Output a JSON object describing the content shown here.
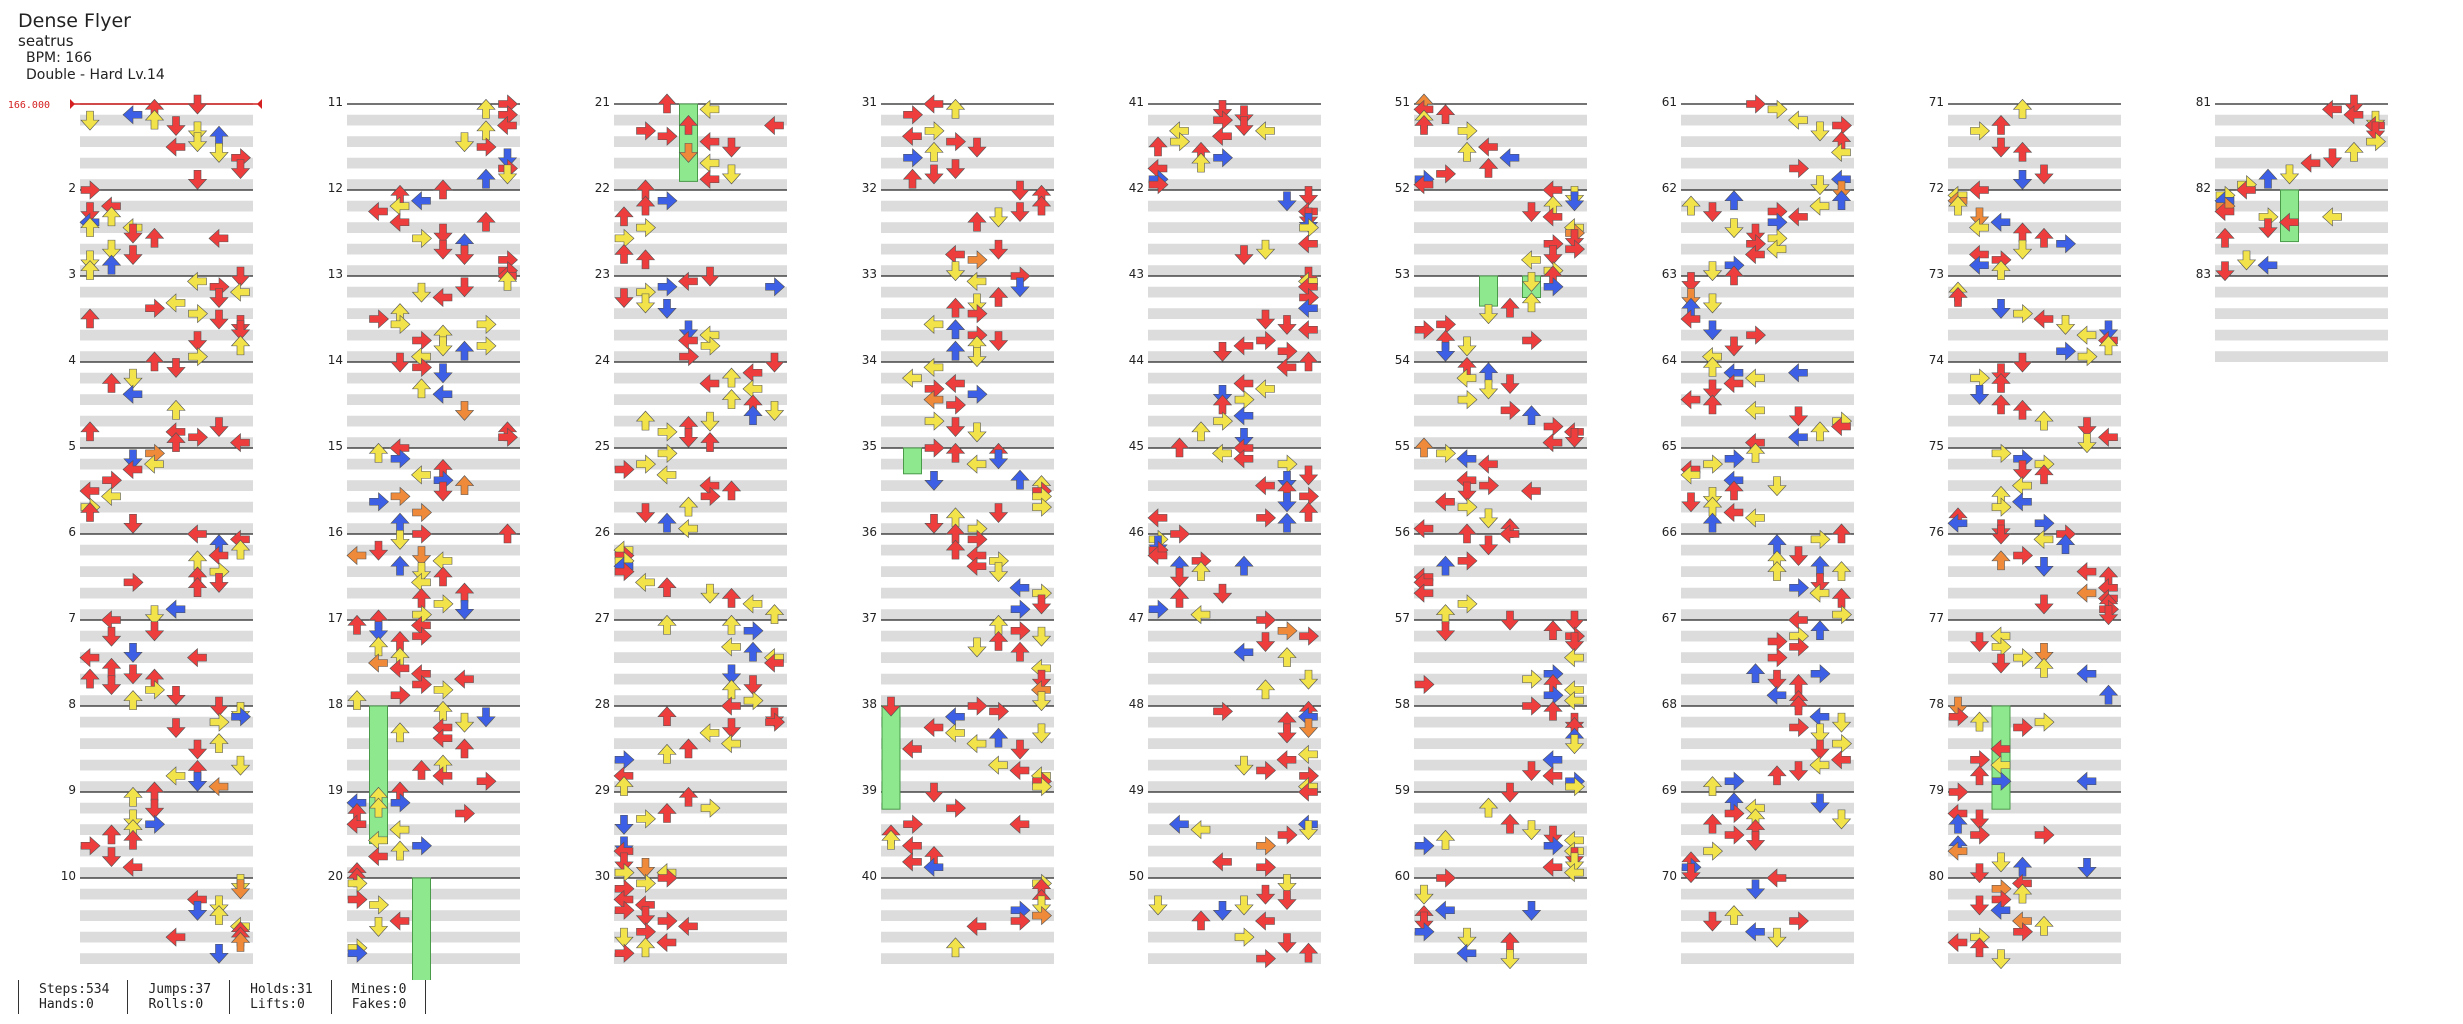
{
  "song": {
    "title": "Dense Flyer",
    "artist": "seatrus",
    "bpm_label": "BPM: 166",
    "difficulty": "Double - Hard Lv.14"
  },
  "bpm_marker": "166.000",
  "measures": {
    "first": 2,
    "last": 83,
    "labels": [
      "2",
      "3",
      "4",
      "5",
      "6",
      "7",
      "8",
      "9",
      "10",
      "11",
      "12",
      "13",
      "14",
      "15",
      "16",
      "17",
      "18",
      "19",
      "20",
      "21",
      "22",
      "23",
      "24",
      "25",
      "26",
      "27",
      "28",
      "29",
      "30",
      "31",
      "32",
      "33",
      "34",
      "35",
      "36",
      "37",
      "38",
      "39",
      "40",
      "41",
      "42",
      "43",
      "44",
      "45",
      "46",
      "47",
      "48",
      "49",
      "50",
      "51",
      "52",
      "53",
      "54",
      "55",
      "56",
      "57",
      "58",
      "59",
      "60",
      "61",
      "62",
      "63",
      "64",
      "65",
      "66",
      "67",
      "68",
      "69",
      "70",
      "71",
      "72",
      "73",
      "74",
      "75",
      "76",
      "77",
      "78",
      "79",
      "80",
      "81",
      "82",
      "83"
    ]
  },
  "colors": {
    "quarter": "#ee3d3d",
    "eighth": "#3c5fe6",
    "sixteenth": "#f2e34a",
    "twelfth": "#ee8a3a",
    "hold": "#8ee88e",
    "lane_gray": "#dcdcdc",
    "bpm_line": "#d42020"
  },
  "stats": [
    {
      "top": "Steps:534",
      "bottom": "Hands:0"
    },
    {
      "top": "Jumps:37",
      "bottom": "Rolls:0"
    },
    {
      "top": "Holds:31",
      "bottom": "Lifts:0"
    },
    {
      "top": "Mines:0",
      "bottom": "Fakes:0"
    }
  ],
  "icons": [
    "left-arrow-icon",
    "down-arrow-icon",
    "up-arrow-icon",
    "right-arrow-icon",
    "hold-body-icon"
  ]
}
